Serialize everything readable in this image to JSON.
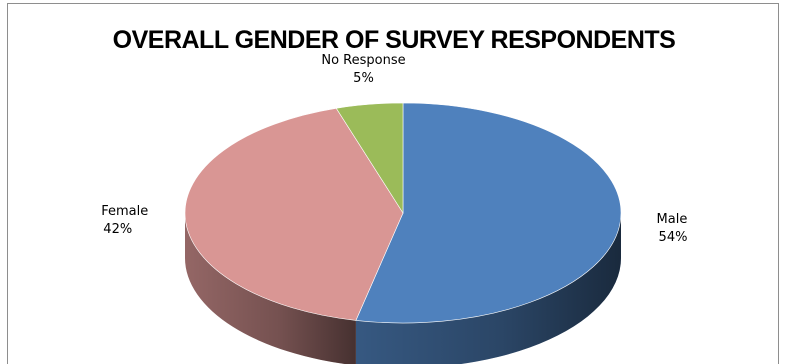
{
  "chart_data": {
    "type": "pie",
    "title": "OVERALL GENDER OF SURVEY RESPONDENTS",
    "categories": [
      "Male",
      "Female",
      "No Response"
    ],
    "values": [
      54,
      42,
      5
    ],
    "unit": "%",
    "value_labels": [
      "54%",
      "42%",
      "5%"
    ],
    "colors": [
      "#4f81bd",
      "#d99694",
      "#9bbb59"
    ],
    "style": "3d",
    "legend": "none",
    "data_labels": "outside"
  }
}
